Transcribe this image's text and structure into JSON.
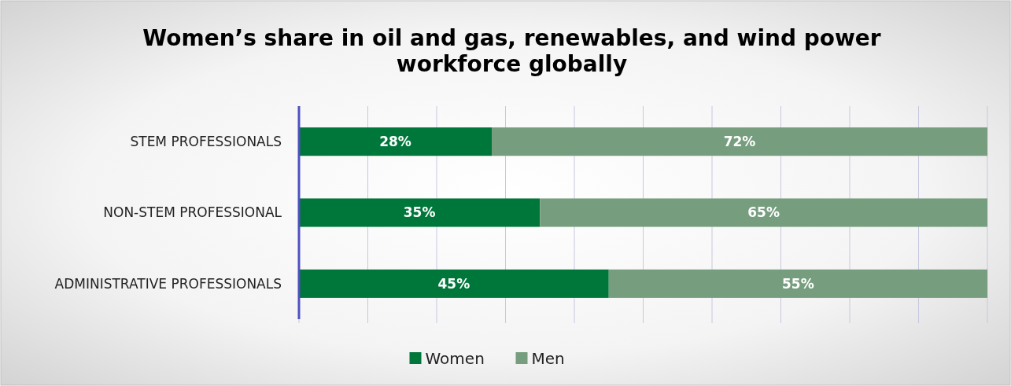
{
  "chart_data": {
    "type": "bar",
    "orientation": "horizontal",
    "stacked": true,
    "title": "Women’s share in oil and gas, renewables, and wind power workforce globally",
    "categories": [
      "STEM PROFESSIONALS",
      "NON-STEM PROFESSIONAL",
      "ADMINISTRATIVE PROFESSIONALS"
    ],
    "series": [
      {
        "name": "Women",
        "color": "#00773a",
        "values": [
          28,
          35,
          45
        ],
        "value_labels": [
          "28%",
          "35%",
          "45%"
        ]
      },
      {
        "name": "Men",
        "color": "#769e7e",
        "values": [
          72,
          65,
          55
        ],
        "value_labels": [
          "72%",
          "65%",
          "55%"
        ]
      }
    ],
    "xlim": [
      0,
      100
    ],
    "xticks": [
      {
        "value": 0,
        "label": null
      },
      {
        "value": 10,
        "label": null
      },
      {
        "value": 20,
        "label": null
      },
      {
        "value": 30,
        "label": null
      },
      {
        "value": 40,
        "label": null
      },
      {
        "value": 50,
        "label": null
      },
      {
        "value": 60,
        "label": null
      },
      {
        "value": 70,
        "label": null
      },
      {
        "value": 80,
        "label": null
      },
      {
        "value": 90,
        "label": null
      },
      {
        "value": 100,
        "label": null
      }
    ],
    "tick_labels": "y",
    "grid": "x",
    "legend": "bottom"
  }
}
